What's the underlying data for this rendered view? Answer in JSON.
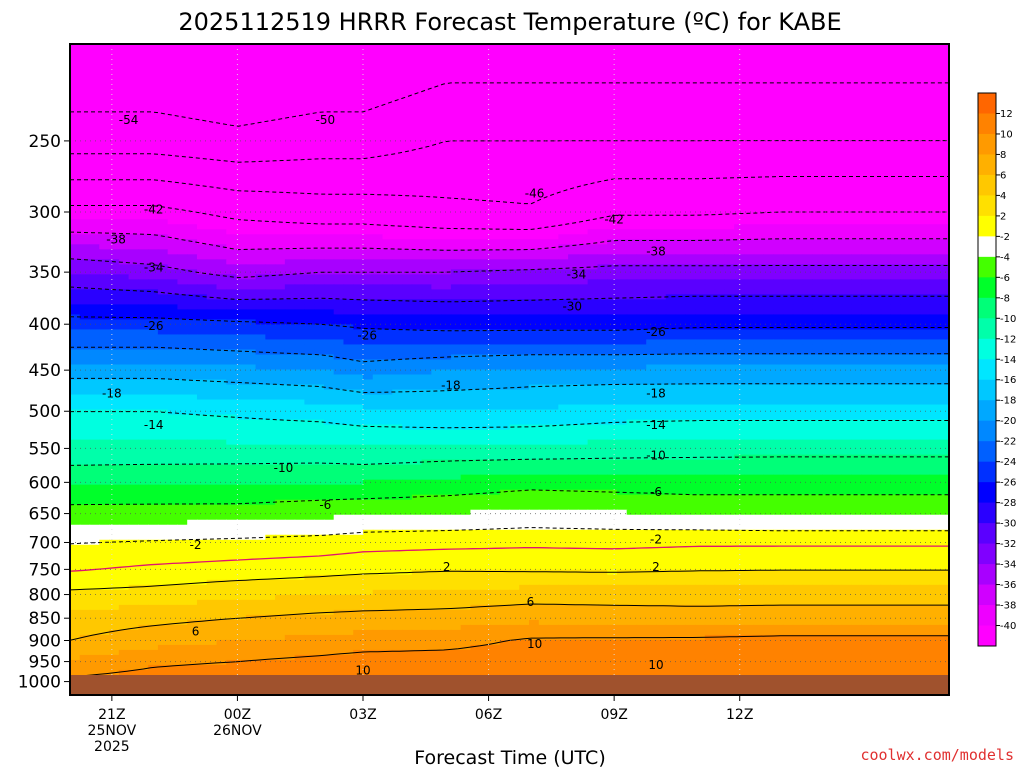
{
  "chart_data": {
    "type": "heatmap",
    "title": "2025112519 HRRR Forecast Temperature (ºC) for KABE",
    "xlabel": "Forecast Time (UTC)",
    "ylabel": "",
    "y_scale": "log",
    "y_direction": "pressure increasing downward",
    "ylim": [
      1035,
      195
    ],
    "y_ticks": [
      250,
      300,
      350,
      400,
      450,
      500,
      550,
      600,
      650,
      700,
      750,
      800,
      850,
      900,
      950,
      1000
    ],
    "x_hours": [
      -4,
      17
    ],
    "x_ticks": [
      {
        "hour": -3,
        "label": "21Z",
        "date_line1": "25NOV",
        "date_line2": "2025"
      },
      {
        "hour": 0,
        "label": "00Z",
        "date_line1": "26NOV",
        "date_line2": ""
      },
      {
        "hour": 3,
        "label": "03Z",
        "date_line1": "",
        "date_line2": ""
      },
      {
        "hour": 6,
        "label": "06Z",
        "date_line1": "",
        "date_line2": ""
      },
      {
        "hour": 9,
        "label": "09Z",
        "date_line1": "",
        "date_line2": ""
      },
      {
        "hour": 12,
        "label": "12Z",
        "date_line1": "",
        "date_line2": ""
      }
    ],
    "grid": {
      "x": "dotted",
      "y": "dotted"
    },
    "ground_color": "#a0522d",
    "colorbar": {
      "labels": [
        "12",
        "10",
        "8",
        "6",
        "4",
        "2",
        "-2",
        "-4",
        "-6",
        "-8",
        "-10",
        "-12",
        "-14",
        "-16",
        "-18",
        "-20",
        "-22",
        "-24",
        "-26",
        "-28",
        "-30",
        "-32",
        "-34",
        "-36",
        "-38",
        "-40"
      ],
      "bins": [
        {
          "color": "#ff6600"
        },
        {
          "color": "#ff8200"
        },
        {
          "color": "#ff9a00"
        },
        {
          "color": "#ffb000"
        },
        {
          "color": "#ffc800"
        },
        {
          "color": "#ffe000"
        },
        {
          "color": "#ffff00"
        },
        {
          "color": "#ffffff"
        },
        {
          "color": "#44ff00"
        },
        {
          "color": "#00ff2a"
        },
        {
          "color": "#00ff78"
        },
        {
          "color": "#00ffaa"
        },
        {
          "color": "#00ffe0"
        },
        {
          "color": "#00e6ff"
        },
        {
          "color": "#00c8ff"
        },
        {
          "color": "#00a8ff"
        },
        {
          "color": "#0088ff"
        },
        {
          "color": "#0060ff"
        },
        {
          "color": "#0030ff"
        },
        {
          "color": "#0000ff"
        },
        {
          "color": "#2a00ff"
        },
        {
          "color": "#5a00ff"
        },
        {
          "color": "#8000ff"
        },
        {
          "color": "#a800ff"
        },
        {
          "color": "#d000ff"
        },
        {
          "color": "#ee00ff"
        },
        {
          "color": "#ff00ff"
        }
      ]
    },
    "profiles": [
      {
        "hour": -4,
        "temps": [
          [
            1000,
            10.5
          ],
          [
            950,
            8.4
          ],
          [
            900,
            6.0
          ],
          [
            850,
            4.8
          ],
          [
            800,
            2.5
          ],
          [
            750,
            -0.2
          ],
          [
            700,
            -2.1
          ],
          [
            650,
            -5
          ],
          [
            600,
            -8.5
          ],
          [
            550,
            -11.5
          ],
          [
            500,
            -14
          ],
          [
            450,
            -19
          ],
          [
            400,
            -25
          ],
          [
            350,
            -32
          ],
          [
            300,
            -41
          ],
          [
            250,
            -52
          ]
        ]
      },
      {
        "hour": -2,
        "temps": [
          [
            1000,
            11
          ],
          [
            950,
            9.6
          ],
          [
            900,
            7.2
          ],
          [
            850,
            5.4
          ],
          [
            800,
            2.8
          ],
          [
            750,
            0.4
          ],
          [
            700,
            -1.8
          ],
          [
            650,
            -5
          ],
          [
            600,
            -8.3
          ],
          [
            550,
            -11.5
          ],
          [
            500,
            -14
          ],
          [
            450,
            -19
          ],
          [
            400,
            -25
          ],
          [
            350,
            -33
          ],
          [
            300,
            -41
          ],
          [
            250,
            -52
          ]
        ]
      },
      {
        "hour": 0,
        "temps": [
          [
            1000,
            11.5
          ],
          [
            950,
            10
          ],
          [
            900,
            8
          ],
          [
            850,
            6
          ],
          [
            800,
            3.5
          ],
          [
            750,
            0.8
          ],
          [
            700,
            -1.5
          ],
          [
            650,
            -5
          ],
          [
            600,
            -8.2
          ],
          [
            550,
            -11.5
          ],
          [
            500,
            -14.5
          ],
          [
            450,
            -19.5
          ],
          [
            400,
            -25.5
          ],
          [
            350,
            -35
          ],
          [
            300,
            -43
          ],
          [
            250,
            -53
          ]
        ]
      },
      {
        "hour": 2,
        "temps": [
          [
            1000,
            12.2
          ],
          [
            950,
            10.6
          ],
          [
            900,
            8.5
          ],
          [
            850,
            6.6
          ],
          [
            800,
            4
          ],
          [
            750,
            1.2
          ],
          [
            700,
            -1.2
          ],
          [
            650,
            -4.5
          ],
          [
            600,
            -8
          ],
          [
            550,
            -11.5
          ],
          [
            500,
            -15
          ],
          [
            450,
            -20
          ],
          [
            400,
            -26
          ],
          [
            350,
            -34
          ],
          [
            300,
            -44
          ],
          [
            250,
            -52
          ]
        ]
      },
      {
        "hour": 3,
        "temps": [
          [
            1000,
            12.5
          ],
          [
            950,
            11
          ],
          [
            900,
            8.8
          ],
          [
            850,
            6.8
          ],
          [
            800,
            4.2
          ],
          [
            750,
            1.5
          ],
          [
            700,
            -0.8
          ],
          [
            650,
            -4.2
          ],
          [
            600,
            -8
          ],
          [
            550,
            -11.8
          ],
          [
            500,
            -15.5
          ],
          [
            450,
            -21
          ],
          [
            400,
            -26.5
          ],
          [
            350,
            -34
          ],
          [
            300,
            -44
          ],
          [
            250,
            -52
          ]
        ]
      },
      {
        "hour": 5,
        "temps": [
          [
            1000,
            12.8
          ],
          [
            950,
            11
          ],
          [
            900,
            9.2
          ],
          [
            850,
            7
          ],
          [
            800,
            4.5
          ],
          [
            750,
            1.8
          ],
          [
            700,
            -0.6
          ],
          [
            650,
            -4
          ],
          [
            600,
            -7.5
          ],
          [
            550,
            -11.5
          ],
          [
            500,
            -16
          ],
          [
            450,
            -20
          ],
          [
            400,
            -27
          ],
          [
            350,
            -34
          ],
          [
            300,
            -45
          ],
          [
            250,
            -50
          ]
        ]
      },
      {
        "hour": 7,
        "temps": [
          [
            1000,
            12.5
          ],
          [
            950,
            11.2
          ],
          [
            900,
            10.3
          ],
          [
            850,
            7.5
          ],
          [
            800,
            5
          ],
          [
            750,
            1.7
          ],
          [
            700,
            -0.4
          ],
          [
            650,
            -3.5
          ],
          [
            600,
            -6.8
          ],
          [
            550,
            -11.5
          ],
          [
            500,
            -15.8
          ],
          [
            450,
            -19.5
          ],
          [
            400,
            -27
          ],
          [
            350,
            -33.5
          ],
          [
            300,
            -45.5
          ],
          [
            250,
            -50
          ]
        ]
      },
      {
        "hour": 9,
        "temps": [
          [
            1000,
            12.2
          ],
          [
            950,
            10.8
          ],
          [
            900,
            10.4
          ],
          [
            850,
            7.2
          ],
          [
            800,
            5
          ],
          [
            750,
            1.6
          ],
          [
            700,
            -0.5
          ],
          [
            650,
            -3.8
          ],
          [
            600,
            -7
          ],
          [
            550,
            -11.2
          ],
          [
            500,
            -15.2
          ],
          [
            450,
            -19.5
          ],
          [
            400,
            -27
          ],
          [
            350,
            -33
          ],
          [
            300,
            -42.5
          ],
          [
            250,
            -50
          ]
        ]
      },
      {
        "hour": 11,
        "temps": [
          [
            1000,
            12.2
          ],
          [
            950,
            10.3
          ],
          [
            900,
            10.5
          ],
          [
            850,
            6.8
          ],
          [
            800,
            5.2
          ],
          [
            750,
            1.8
          ],
          [
            700,
            -0.3
          ],
          [
            650,
            -4.2
          ],
          [
            600,
            -7.2
          ],
          [
            550,
            -11
          ],
          [
            500,
            -15
          ],
          [
            450,
            -19.5
          ],
          [
            400,
            -26.5
          ],
          [
            350,
            -33
          ],
          [
            300,
            -42.5
          ],
          [
            250,
            -50
          ]
        ]
      },
      {
        "hour": 13,
        "temps": [
          [
            1000,
            12.5
          ],
          [
            950,
            10.5
          ],
          [
            900,
            10.8
          ],
          [
            850,
            7
          ],
          [
            800,
            5.2
          ],
          [
            750,
            1.9
          ],
          [
            700,
            -0.3
          ],
          [
            650,
            -4.5
          ],
          [
            600,
            -7
          ],
          [
            550,
            -11
          ],
          [
            500,
            -15
          ],
          [
            450,
            -19.5
          ],
          [
            400,
            -26.5
          ],
          [
            350,
            -33
          ],
          [
            300,
            -42
          ],
          [
            250,
            -50
          ]
        ]
      }
    ],
    "contour_labels": [
      {
        "text": "-54",
        "hour": -2.6,
        "p": 237
      },
      {
        "text": "-50",
        "hour": 2.1,
        "p": 237
      },
      {
        "text": "-42",
        "hour": -2.0,
        "p": 298
      },
      {
        "text": "-46",
        "hour": 7.1,
        "p": 286
      },
      {
        "text": "-42",
        "hour": 9.0,
        "p": 306
      },
      {
        "text": "-38",
        "hour": -2.9,
        "p": 322
      },
      {
        "text": "-38",
        "hour": 10.0,
        "p": 332
      },
      {
        "text": "-34",
        "hour": -2.0,
        "p": 346
      },
      {
        "text": "-34",
        "hour": 8.1,
        "p": 352
      },
      {
        "text": "-30",
        "hour": 8.0,
        "p": 382
      },
      {
        "text": "-26",
        "hour": -2.0,
        "p": 402
      },
      {
        "text": "-26",
        "hour": 3.1,
        "p": 412
      },
      {
        "text": "-26",
        "hour": 10.0,
        "p": 408
      },
      {
        "text": "-18",
        "hour": 5.1,
        "p": 468
      },
      {
        "text": "-18",
        "hour": -3.0,
        "p": 478
      },
      {
        "text": "-18",
        "hour": 10.0,
        "p": 478
      },
      {
        "text": "-14",
        "hour": -2.0,
        "p": 518
      },
      {
        "text": "-14",
        "hour": 10.0,
        "p": 518
      },
      {
        "text": "-10",
        "hour": 1.1,
        "p": 578
      },
      {
        "text": "-10",
        "hour": 10.0,
        "p": 560
      },
      {
        "text": "-6",
        "hour": 2.1,
        "p": 636
      },
      {
        "text": "-6",
        "hour": 10.0,
        "p": 615
      },
      {
        "text": "-2",
        "hour": -1.0,
        "p": 705
      },
      {
        "text": "-2",
        "hour": 10.0,
        "p": 695
      },
      {
        "text": "2",
        "hour": 5.0,
        "p": 745
      },
      {
        "text": "2",
        "hour": 10.0,
        "p": 745
      },
      {
        "text": "6",
        "hour": -1.0,
        "p": 880
      },
      {
        "text": "6",
        "hour": 7.0,
        "p": 815
      },
      {
        "text": "10",
        "hour": 3.0,
        "p": 972
      },
      {
        "text": "10",
        "hour": 7.1,
        "p": 908
      },
      {
        "text": "10",
        "hour": 10.0,
        "p": 958
      }
    ]
  },
  "credit": "coolwx.com/models"
}
